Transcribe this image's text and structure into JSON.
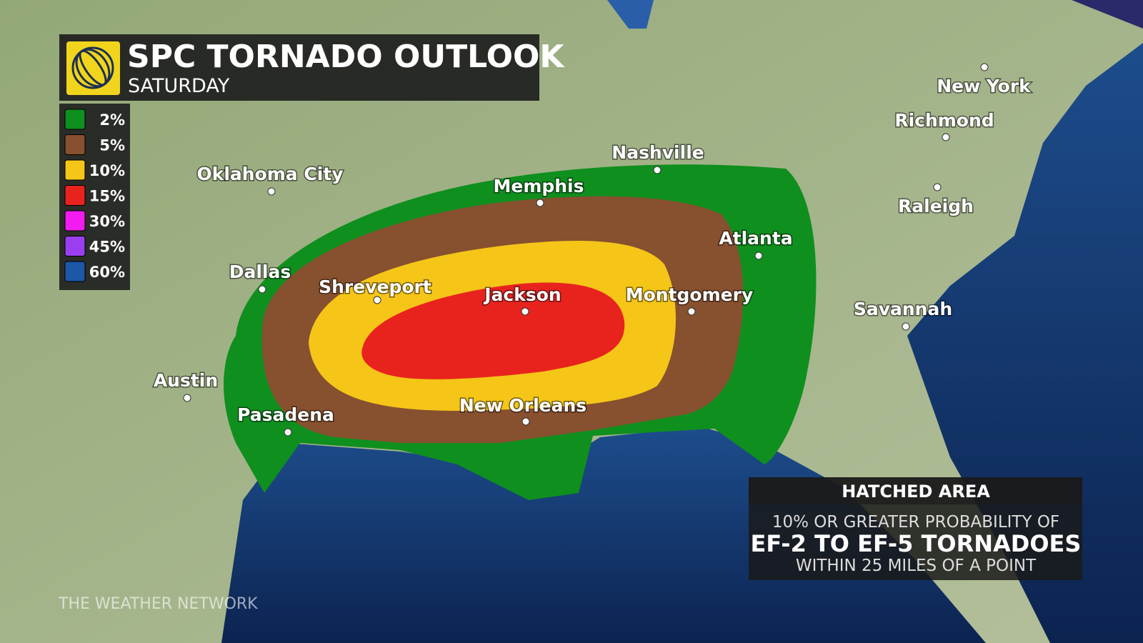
{
  "header": {
    "title": "SPC TORNADO OUTLOOK",
    "subtitle": "SATURDAY"
  },
  "legend": {
    "items": [
      {
        "label": "2%",
        "color": "#0f8f1e"
      },
      {
        "label": "5%",
        "color": "#87502f"
      },
      {
        "label": "10%",
        "color": "#f5c518"
      },
      {
        "label": "15%",
        "color": "#e8231e"
      },
      {
        "label": "30%",
        "color": "#f21cf0"
      },
      {
        "label": "45%",
        "color": "#9a3ff0"
      },
      {
        "label": "60%",
        "color": "#1d57a8"
      }
    ]
  },
  "cities": [
    "New York",
    "Richmond",
    "Raleigh",
    "Nashville",
    "Memphis",
    "Oklahoma City",
    "Atlanta",
    "Dallas",
    "Shreveport",
    "Jackson",
    "Montgomery",
    "Savannah",
    "Austin",
    "Pasadena",
    "New Orleans"
  ],
  "hatched": {
    "title": "HATCHED AREA",
    "line1": "10% OR GREATER PROBABILITY OF",
    "line2": "EF-2 TO EF-5 TORNADOES",
    "line3": "WITHIN 25 MILES OF A POINT"
  },
  "watermark": "THE WEATHER NETWORK"
}
